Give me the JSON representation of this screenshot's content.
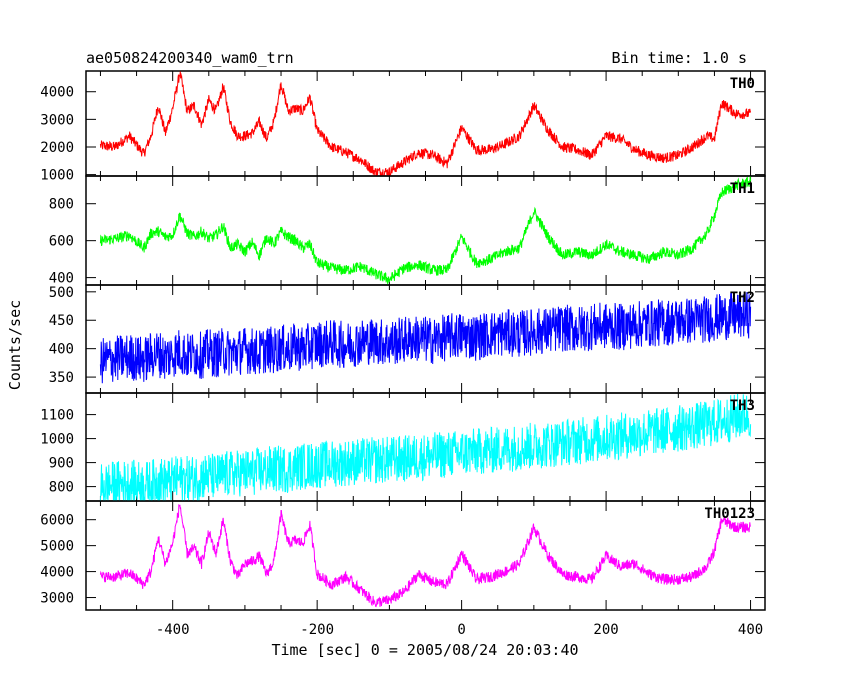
{
  "header": {
    "title": "ae050824200340_wam0_trn",
    "bin_time": "Bin time: 1.0 s"
  },
  "chart_data": {
    "type": "line",
    "title": "ae050824200340_wam0_trn",
    "xlabel": "Time [sec] 0 = 2005/08/24 20:03:40",
    "ylabel": "Counts/sec",
    "xlim": [
      -520,
      420
    ],
    "x_ticks": [
      -400,
      -200,
      0,
      200,
      400
    ],
    "x": [
      -500,
      -480,
      -460,
      -440,
      -430,
      -420,
      -410,
      -400,
      -390,
      -380,
      -370,
      -360,
      -350,
      -340,
      -330,
      -320,
      -310,
      -300,
      -290,
      -280,
      -270,
      -260,
      -250,
      -240,
      -230,
      -220,
      -210,
      -200,
      -180,
      -160,
      -140,
      -120,
      -100,
      -80,
      -60,
      -40,
      -20,
      0,
      20,
      40,
      60,
      80,
      100,
      120,
      140,
      160,
      180,
      200,
      220,
      240,
      260,
      280,
      300,
      320,
      340,
      350,
      360,
      380,
      400
    ],
    "panels": [
      {
        "name": "TH0",
        "color": "#ff0000",
        "ylim": [
          950,
          4750
        ],
        "y_ticks": [
          1000,
          2000,
          3000,
          4000
        ],
        "values": [
          2050,
          2000,
          2400,
          1750,
          2400,
          3500,
          2500,
          3400,
          4700,
          3300,
          3500,
          2800,
          3700,
          3300,
          4200,
          2900,
          2400,
          2400,
          2500,
          2900,
          2300,
          2900,
          4300,
          3300,
          3400,
          3300,
          3800,
          2600,
          2000,
          1800,
          1550,
          1100,
          1100,
          1450,
          1800,
          1700,
          1400,
          2700,
          1900,
          1900,
          2100,
          2400,
          3500,
          2600,
          2000,
          1900,
          1700,
          2400,
          2300,
          1900,
          1700,
          1600,
          1700,
          2000,
          2400,
          2300,
          3600,
          3200,
          3200
        ]
      },
      {
        "name": "TH1",
        "color": "#00ff00",
        "ylim": [
          360,
          950
        ],
        "y_ticks": [
          400,
          600,
          800
        ],
        "values": [
          600,
          610,
          630,
          560,
          640,
          650,
          620,
          630,
          740,
          640,
          620,
          650,
          610,
          630,
          680,
          560,
          580,
          540,
          590,
          520,
          620,
          580,
          650,
          620,
          600,
          560,
          580,
          480,
          450,
          440,
          460,
          420,
          390,
          450,
          470,
          440,
          440,
          620,
          480,
          500,
          540,
          560,
          760,
          620,
          520,
          540,
          520,
          580,
          540,
          520,
          500,
          540,
          520,
          560,
          640,
          740,
          860,
          900,
          920
        ]
      },
      {
        "name": "TH2",
        "color": "#0000ff",
        "ylim": [
          322,
          512
        ],
        "y_ticks": [
          350,
          400,
          450,
          500
        ],
        "trend": [
          380,
          460
        ],
        "values": [
          378,
          382,
          386,
          380,
          388,
          392,
          384,
          390,
          396,
          386,
          392,
          388,
          394,
          390,
          396,
          392,
          394,
          398,
          396,
          392,
          400,
          396,
          402,
          398,
          404,
          400,
          404,
          408,
          410,
          406,
          412,
          414,
          410,
          416,
          418,
          414,
          420,
          424,
          420,
          426,
          428,
          426,
          430,
          432,
          436,
          434,
          438,
          440,
          438,
          442,
          444,
          446,
          448,
          450,
          452,
          454,
          456,
          458,
          460
        ]
      },
      {
        "name": "TH3",
        "color": "#00ffff",
        "ylim": [
          740,
          1190
        ],
        "y_ticks": [
          800,
          900,
          1000,
          1100
        ],
        "trend": [
          790,
          1110
        ],
        "values": [
          800,
          810,
          815,
          808,
          812,
          830,
          820,
          826,
          834,
          830,
          836,
          842,
          846,
          838,
          850,
          852,
          856,
          860,
          858,
          866,
          870,
          872,
          874,
          870,
          880,
          885,
          888,
          890,
          896,
          900,
          905,
          908,
          912,
          916,
          922,
          928,
          934,
          940,
          946,
          950,
          958,
          964,
          970,
          976,
          984,
          990,
          996,
          1004,
          1010,
          1018,
          1026,
          1034,
          1042,
          1050,
          1060,
          1066,
          1074,
          1090,
          1100
        ]
      },
      {
        "name": "TH0123",
        "color": "#ff00ff",
        "ylim": [
          2520,
          6720
        ],
        "y_ticks": [
          3000,
          4000,
          5000,
          6000
        ],
        "values": [
          3800,
          3800,
          3950,
          3500,
          4000,
          5300,
          4300,
          5100,
          6600,
          4700,
          4900,
          4300,
          5500,
          4700,
          6000,
          4400,
          3800,
          4300,
          4400,
          4600,
          3900,
          4400,
          6200,
          5100,
          5200,
          5100,
          5800,
          3900,
          3500,
          3800,
          3300,
          2800,
          2900,
          3200,
          3900,
          3600,
          3500,
          4700,
          3700,
          3800,
          4000,
          4300,
          5700,
          4600,
          3900,
          3800,
          3700,
          4600,
          4200,
          4300,
          3900,
          3700,
          3700,
          3800,
          4200,
          4800,
          6000,
          5700,
          5700
        ]
      }
    ]
  }
}
